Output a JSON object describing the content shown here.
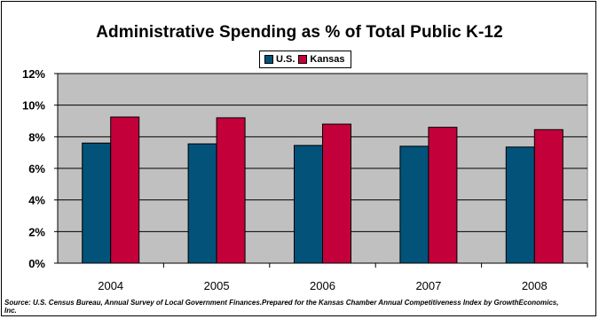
{
  "chart_data": {
    "type": "bar",
    "title": "Administrative Spending as % of Total Public K-12",
    "categories": [
      "2004",
      "2005",
      "2006",
      "2007",
      "2008"
    ],
    "series": [
      {
        "name": "U.S.",
        "color": "#02527A",
        "values": [
          7.6,
          7.55,
          7.45,
          7.4,
          7.35
        ]
      },
      {
        "name": "Kansas",
        "color": "#C4003B",
        "values": [
          9.25,
          9.2,
          8.8,
          8.6,
          8.45
        ]
      }
    ],
    "ylim": [
      0,
      12
    ],
    "yticks": [
      "0%",
      "2%",
      "4%",
      "6%",
      "8%",
      "10%",
      "12%"
    ],
    "ytick_values": [
      0,
      2,
      4,
      6,
      8,
      10,
      12
    ],
    "grid": true,
    "plot_background": "#C0C0C0",
    "legend_position": "top-center",
    "xlabel": "",
    "ylabel": ""
  },
  "source_text": "Source: U.S. Census Bureau, Annual Survey of Local Government Finances.Prepared for the Kansas Chamber Annual Competitiveness Index by GrowthEconomics, Inc."
}
